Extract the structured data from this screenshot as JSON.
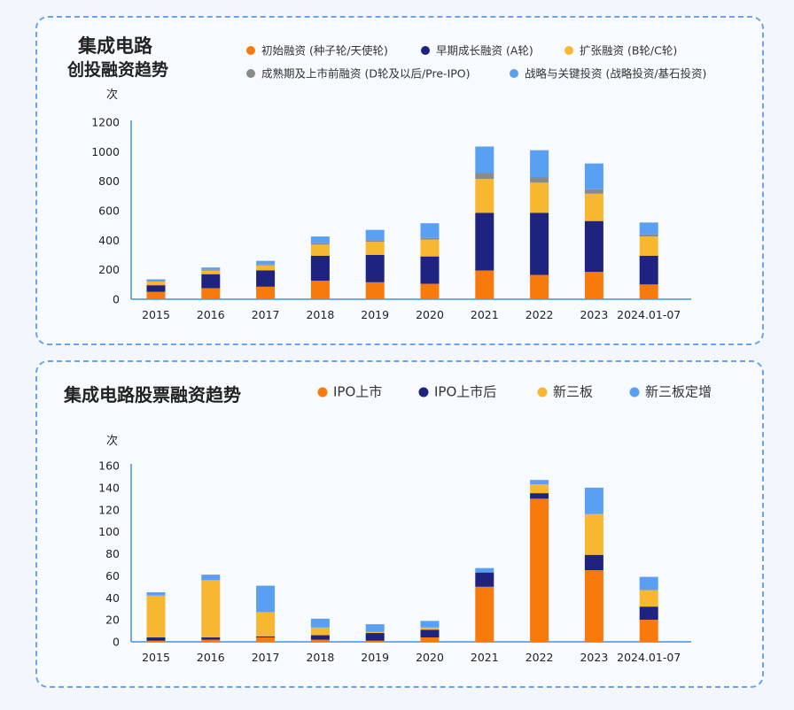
{
  "colors": {
    "orange": "#f77b0c",
    "navy": "#1d237f",
    "yellow": "#f7b731",
    "gray": "#8a8a8a",
    "blue": "#5aa0f2",
    "axis": "#4a90e2"
  },
  "chart_data": [
    {
      "type": "bar",
      "stacked": true,
      "title_line1": "集成电路",
      "title_line2": "创投融资趋势",
      "ylabel": "次",
      "ylim": [
        0,
        1200
      ],
      "yticks": [
        0,
        200,
        400,
        600,
        800,
        1000,
        1200
      ],
      "categories": [
        "2015",
        "2016",
        "2017",
        "2018",
        "2019",
        "2020",
        "2021",
        "2022",
        "2023",
        "2024.01-07"
      ],
      "series": [
        {
          "name": "初始融资 (种子轮/天使轮)",
          "color": "orange",
          "values": [
            50,
            75,
            85,
            125,
            115,
            105,
            195,
            165,
            185,
            100
          ]
        },
        {
          "name": "早期成长融资 (A轮)",
          "color": "navy",
          "values": [
            45,
            95,
            110,
            170,
            185,
            185,
            390,
            420,
            345,
            195
          ]
        },
        {
          "name": "扩张融资 (B轮/C轮)",
          "color": "yellow",
          "values": [
            25,
            25,
            35,
            75,
            90,
            115,
            230,
            205,
            185,
            130
          ]
        },
        {
          "name": "成熟期及上市前融资 (D轮及以后/Pre-IPO)",
          "color": "gray",
          "values": [
            5,
            5,
            5,
            10,
            10,
            10,
            40,
            35,
            30,
            15
          ]
        },
        {
          "name": "战略与关键投资 (战略投资/基石投资)",
          "color": "blue",
          "values": [
            10,
            15,
            25,
            45,
            70,
            100,
            180,
            185,
            175,
            80
          ]
        }
      ]
    },
    {
      "type": "bar",
      "stacked": true,
      "title": "集成电路股票融资趋势",
      "ylabel": "次",
      "ylim": [
        0,
        160
      ],
      "yticks": [
        0,
        20,
        40,
        60,
        80,
        100,
        120,
        140,
        160
      ],
      "categories": [
        "2015",
        "2016",
        "2017",
        "2018",
        "2019",
        "2020",
        "2021",
        "2022",
        "2023",
        "2024.01-07"
      ],
      "series": [
        {
          "name": "IPO上市",
          "color": "orange",
          "values": [
            1,
            2,
            4,
            2,
            1,
            4,
            50,
            130,
            65,
            20
          ]
        },
        {
          "name": "IPO上市后",
          "color": "navy",
          "values": [
            3,
            2,
            1,
            4,
            7,
            7,
            13,
            5,
            14,
            12
          ]
        },
        {
          "name": "新三板",
          "color": "yellow",
          "values": [
            38,
            52,
            22,
            7,
            1,
            2,
            0,
            8,
            37,
            15
          ]
        },
        {
          "name": "新三板定增",
          "color": "blue",
          "values": [
            3,
            5,
            24,
            8,
            7,
            6,
            4,
            4,
            24,
            12
          ]
        }
      ]
    }
  ]
}
